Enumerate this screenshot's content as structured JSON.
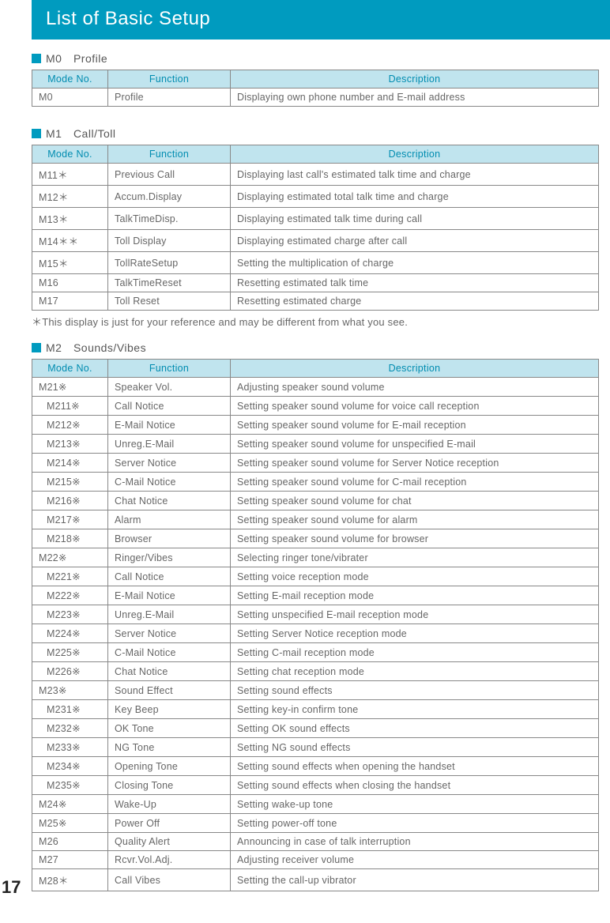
{
  "title": "List of Basic Setup",
  "pageNumber": "17",
  "note": "＊This display is just for your reference and may be different from what you see.",
  "headers": {
    "mode": "Mode No.",
    "func": "Function",
    "desc": "Description"
  },
  "sections": [
    {
      "label": "M0　Profile",
      "rows": [
        {
          "mode": "M0",
          "func": "Profile",
          "desc": "Displaying own phone number and E-mail address",
          "indent": false
        }
      ],
      "noteAfter": false
    },
    {
      "label": "M1　Call/Toll",
      "rows": [
        {
          "mode": "M11＊",
          "func": "Previous Call",
          "desc": "Displaying last call's estimated talk time and charge",
          "indent": false
        },
        {
          "mode": "M12＊",
          "func": "Accum.Display",
          "desc": "Displaying estimated total talk time and charge",
          "indent": false
        },
        {
          "mode": "M13＊",
          "func": "TalkTimeDisp.",
          "desc": "Displaying estimated talk time during call",
          "indent": false
        },
        {
          "mode": "M14＊＊",
          "func": "Toll Display",
          "desc": "Displaying estimated charge after call",
          "indent": false
        },
        {
          "mode": "M15＊",
          "func": "TollRateSetup",
          "desc": "Setting the multiplication of charge",
          "indent": false
        },
        {
          "mode": "M16",
          "func": "TalkTimeReset",
          "desc": "Resetting estimated talk time",
          "indent": false
        },
        {
          "mode": "M17",
          "func": "Toll Reset",
          "desc": "Resetting estimated charge",
          "indent": false
        }
      ],
      "noteAfter": true
    },
    {
      "label": "M2　Sounds/Vibes",
      "rows": [
        {
          "mode": "M21※",
          "func": "Speaker Vol.",
          "desc": "Adjusting speaker sound volume",
          "indent": false
        },
        {
          "mode": "M211※",
          "func": "Call Notice",
          "desc": "Setting speaker sound volume for voice call reception",
          "indent": true
        },
        {
          "mode": "M212※",
          "func": "E-Mail Notice",
          "desc": "Setting speaker sound volume for E-mail reception",
          "indent": true
        },
        {
          "mode": "M213※",
          "func": "Unreg.E-Mail",
          "desc": "Setting speaker sound volume for unspecified E-mail",
          "indent": true
        },
        {
          "mode": "M214※",
          "func": "Server Notice",
          "desc": "Setting speaker sound volume for Server Notice reception",
          "indent": true
        },
        {
          "mode": "M215※",
          "func": "C-Mail Notice",
          "desc": "Setting speaker sound volume for C-mail reception",
          "indent": true
        },
        {
          "mode": "M216※",
          "func": "Chat Notice",
          "desc": "Setting speaker sound volume for chat",
          "indent": true
        },
        {
          "mode": "M217※",
          "func": "Alarm",
          "desc": "Setting speaker sound volume for alarm",
          "indent": true
        },
        {
          "mode": "M218※",
          "func": "Browser",
          "desc": "Setting speaker sound volume for browser",
          "indent": true
        },
        {
          "mode": "M22※",
          "func": "Ringer/Vibes",
          "desc": "Selecting ringer tone/vibrater",
          "indent": false
        },
        {
          "mode": "M221※",
          "func": "Call Notice",
          "desc": "Setting voice reception mode",
          "indent": true
        },
        {
          "mode": "M222※",
          "func": "E-Mail Notice",
          "desc": "Setting E-mail reception mode",
          "indent": true
        },
        {
          "mode": "M223※",
          "func": "Unreg.E-Mail",
          "desc": "Setting unspecified E-mail reception mode",
          "indent": true
        },
        {
          "mode": "M224※",
          "func": "Server Notice",
          "desc": "Setting Server Notice reception mode",
          "indent": true
        },
        {
          "mode": "M225※",
          "func": "C-Mail Notice",
          "desc": "Setting C-mail reception mode",
          "indent": true
        },
        {
          "mode": "M226※",
          "func": "Chat Notice",
          "desc": "Setting chat reception mode",
          "indent": true
        },
        {
          "mode": "M23※",
          "func": "Sound Effect",
          "desc": "Setting sound effects",
          "indent": false
        },
        {
          "mode": "M231※",
          "func": "Key Beep",
          "desc": "Setting key-in confirm tone",
          "indent": true
        },
        {
          "mode": "M232※",
          "func": "OK Tone",
          "desc": "Setting OK sound effects",
          "indent": true
        },
        {
          "mode": "M233※",
          "func": "NG Tone",
          "desc": "Setting NG sound effects",
          "indent": true
        },
        {
          "mode": "M234※",
          "func": "Opening Tone",
          "desc": "Setting sound effects when opening the handset",
          "indent": true
        },
        {
          "mode": "M235※",
          "func": "Closing Tone",
          "desc": "Setting sound effects when closing the handset",
          "indent": true
        },
        {
          "mode": "M24※",
          "func": "Wake-Up",
          "desc": "Setting wake-up tone",
          "indent": false
        },
        {
          "mode": "M25※",
          "func": "Power Off",
          "desc": "Setting power-off tone",
          "indent": false
        },
        {
          "mode": "M26",
          "func": "Quality Alert",
          "desc": "Announcing in case of talk interruption",
          "indent": false
        },
        {
          "mode": "M27",
          "func": "Rcvr.Vol.Adj.",
          "desc": "Adjusting receiver volume",
          "indent": false
        },
        {
          "mode": "M28＊",
          "func": "Call Vibes",
          "desc": "Setting the call-up vibrator",
          "indent": false
        }
      ],
      "noteAfter": false
    }
  ]
}
